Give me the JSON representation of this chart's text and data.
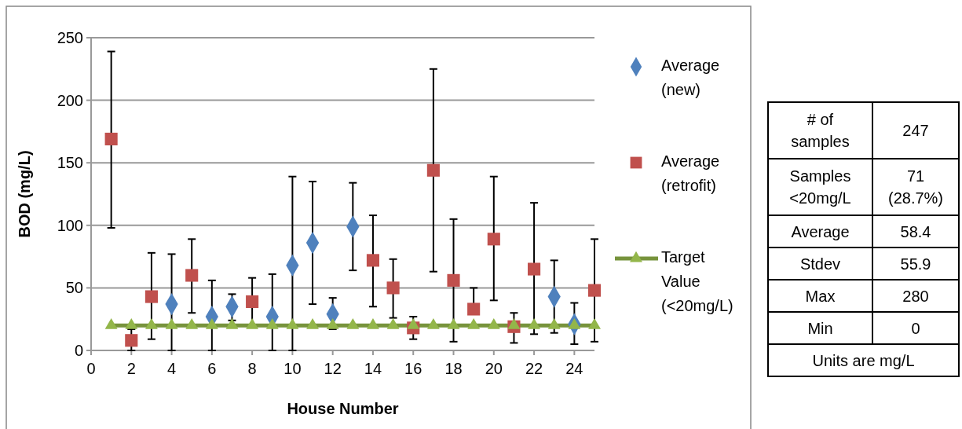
{
  "chart_data": {
    "type": "scatter",
    "xlabel": "House Number",
    "ylabel": "BOD (mg/L)",
    "xlim": [
      0,
      25
    ],
    "xticks": [
      0,
      2,
      4,
      6,
      8,
      10,
      12,
      14,
      16,
      18,
      20,
      22,
      24
    ],
    "ylim": [
      0,
      250
    ],
    "yticks": [
      0,
      50,
      100,
      150,
      200,
      250
    ],
    "grid": "y",
    "legend": "right",
    "series": [
      {
        "name": "Average (new)",
        "marker": "diamond",
        "color": "#4f81bd",
        "x": [
          4,
          6,
          7,
          9,
          10,
          11,
          12,
          13,
          23,
          24
        ],
        "values": [
          37,
          27,
          35,
          27,
          68,
          86,
          29,
          99,
          43,
          21
        ],
        "errors": [
          [
            0,
            77
          ],
          [
            0,
            56
          ],
          [
            24,
            45
          ],
          [
            0,
            61
          ],
          [
            0,
            139
          ],
          [
            37,
            135
          ],
          [
            17,
            42
          ],
          [
            64,
            134
          ],
          [
            14,
            72
          ],
          [
            5,
            38
          ]
        ]
      },
      {
        "name": "Average (retrofit)",
        "marker": "square",
        "color": "#c0504d",
        "x": [
          1,
          2,
          3,
          5,
          8,
          14,
          15,
          16,
          17,
          18,
          19,
          20,
          21,
          22,
          25
        ],
        "values": [
          169,
          8,
          43,
          60,
          39,
          72,
          50,
          18,
          144,
          56,
          33,
          89,
          19,
          65,
          48
        ],
        "errors": [
          [
            98,
            239
          ],
          [
            0,
            17
          ],
          [
            9,
            78
          ],
          [
            30,
            89
          ],
          [
            19,
            58
          ],
          [
            35,
            108
          ],
          [
            26,
            73
          ],
          [
            9,
            27
          ],
          [
            63,
            225
          ],
          [
            7,
            105
          ],
          [
            33,
            50
          ],
          [
            40,
            139
          ],
          [
            6,
            30
          ],
          [
            13,
            118
          ],
          [
            7,
            89
          ]
        ]
      },
      {
        "name": "Target Value (<20mg/L)",
        "type": "line",
        "marker": "triangle",
        "color": "#77933c",
        "x": [
          1,
          2,
          3,
          4,
          5,
          6,
          7,
          8,
          9,
          10,
          11,
          12,
          13,
          14,
          15,
          16,
          17,
          18,
          19,
          20,
          21,
          22,
          23,
          24,
          25
        ],
        "values": [
          20,
          20,
          20,
          20,
          20,
          20,
          20,
          20,
          20,
          20,
          20,
          20,
          20,
          20,
          20,
          20,
          20,
          20,
          20,
          20,
          20,
          20,
          20,
          20,
          20
        ]
      }
    ],
    "annotations": [
      "# of samples",
      "247",
      "Samples <20mg/L",
      "71 (28.7%)",
      "Average",
      "58.4",
      "Stdev",
      "55.9",
      "Max",
      "280",
      "Min",
      "0",
      "Units are mg/L"
    ]
  }
}
